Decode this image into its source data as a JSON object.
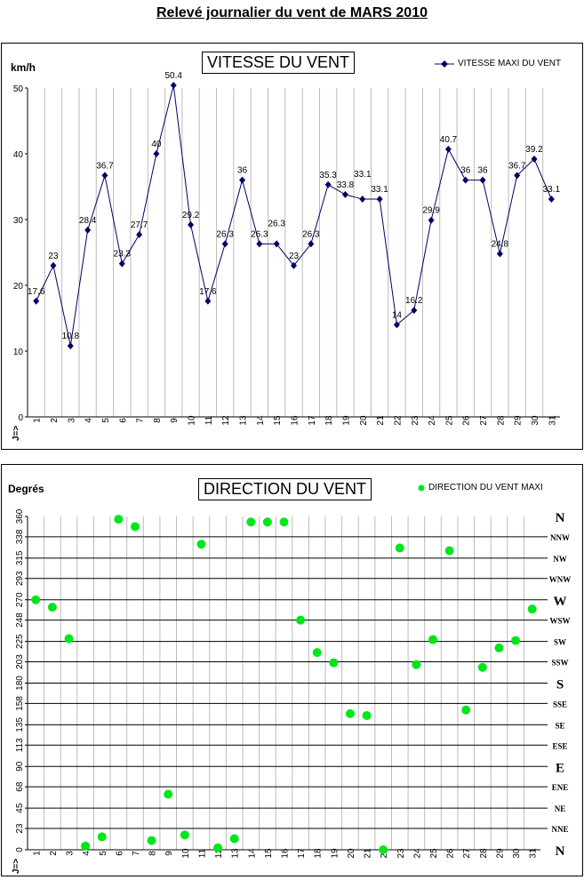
{
  "page_title": "Relevé journalier du vent de MARS 2010",
  "chart_data": [
    {
      "type": "line",
      "title": "VITESSE DU VENT",
      "ylabel": "km/h",
      "xlabel": "J=>",
      "x": [
        1,
        2,
        3,
        4,
        5,
        6,
        7,
        8,
        9,
        10,
        11,
        12,
        13,
        14,
        15,
        16,
        17,
        18,
        19,
        20,
        21,
        22,
        23,
        24,
        25,
        26,
        27,
        28,
        29,
        30,
        31
      ],
      "series": [
        {
          "name": "VITESSE MAXI DU VENT",
          "color": "#000066",
          "values": [
            17.6,
            23,
            10.8,
            28.4,
            36.7,
            23.3,
            27.7,
            40,
            50.4,
            29.2,
            17.6,
            26.3,
            36,
            26.3,
            26.3,
            23,
            26.3,
            35.3,
            33.8,
            33.1,
            33.1,
            14,
            16.2,
            29.9,
            40.7,
            36,
            36,
            24.8,
            36.7,
            39.2,
            33.1
          ]
        }
      ],
      "ylim": [
        0,
        50
      ],
      "yticks": [
        0,
        10,
        20,
        30,
        40,
        50
      ],
      "legend": "top-right",
      "grid": "vertical"
    },
    {
      "type": "scatter",
      "title": "DIRECTION DU VENT",
      "ylabel": "Degrés",
      "xlabel": "J=>",
      "x": [
        1,
        2,
        3,
        4,
        5,
        6,
        7,
        8,
        9,
        10,
        11,
        12,
        13,
        14,
        15,
        16,
        17,
        18,
        19,
        20,
        21,
        22,
        23,
        24,
        25,
        26,
        27,
        28,
        29,
        30,
        31
      ],
      "series": [
        {
          "name": "DIRECTION DU VENT MAXI",
          "color": "#00e61a",
          "values": [
            270,
            262,
            228,
            4,
            14,
            357,
            349,
            10,
            60,
            16,
            330,
            2,
            12,
            354,
            354,
            354,
            248,
            213,
            202,
            147,
            145,
            0,
            326,
            200,
            227,
            323,
            151,
            197,
            218,
            226,
            260
          ]
        }
      ],
      "ylim": [
        0,
        360
      ],
      "yticks": [
        0,
        23,
        45,
        68,
        90,
        113,
        135,
        158,
        180,
        203,
        225,
        248,
        270,
        293,
        315,
        338,
        360
      ],
      "right_labels": [
        "N",
        "NNE",
        "NE",
        "ENE",
        "E",
        "ESE",
        "SE",
        "SSE",
        "S",
        "SSW",
        "SW",
        "WSW",
        "W",
        "WNW",
        "NW",
        "NNW",
        "N"
      ],
      "legend": "top-right",
      "grid": "both"
    }
  ]
}
